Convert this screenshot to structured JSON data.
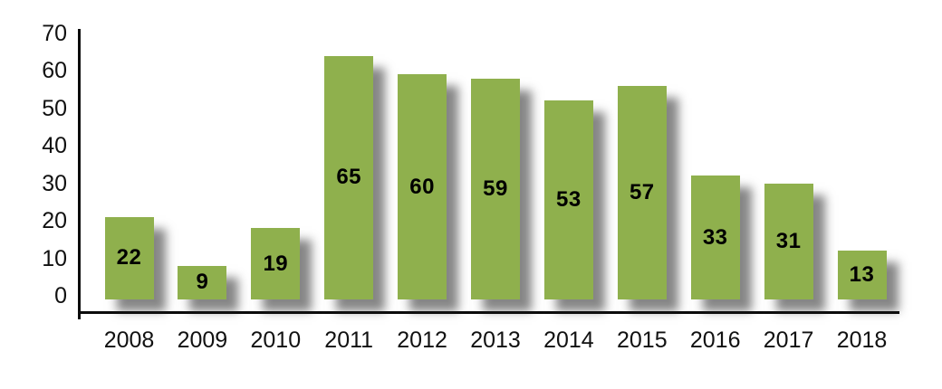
{
  "chart_data": {
    "type": "bar",
    "categories": [
      "2008",
      "2009",
      "2010",
      "2011",
      "2012",
      "2013",
      "2014",
      "2015",
      "2016",
      "2017",
      "2018"
    ],
    "values": [
      22,
      9,
      19,
      65,
      60,
      59,
      53,
      57,
      33,
      31,
      13
    ],
    "title": "",
    "xlabel": "",
    "ylabel": "",
    "ylim": [
      0,
      70
    ],
    "yticks": [
      0,
      10,
      20,
      30,
      40,
      50,
      60,
      70
    ],
    "grid": false,
    "legend": false,
    "data_labels_position": "inside-center",
    "colors": {
      "bar": "#8FB04D",
      "bar_label": "#000000",
      "axis": "#0c0c0c",
      "tick_text": "#111111",
      "background": "#ffffff",
      "shadow": "rgba(35,35,35,0.55)"
    }
  }
}
